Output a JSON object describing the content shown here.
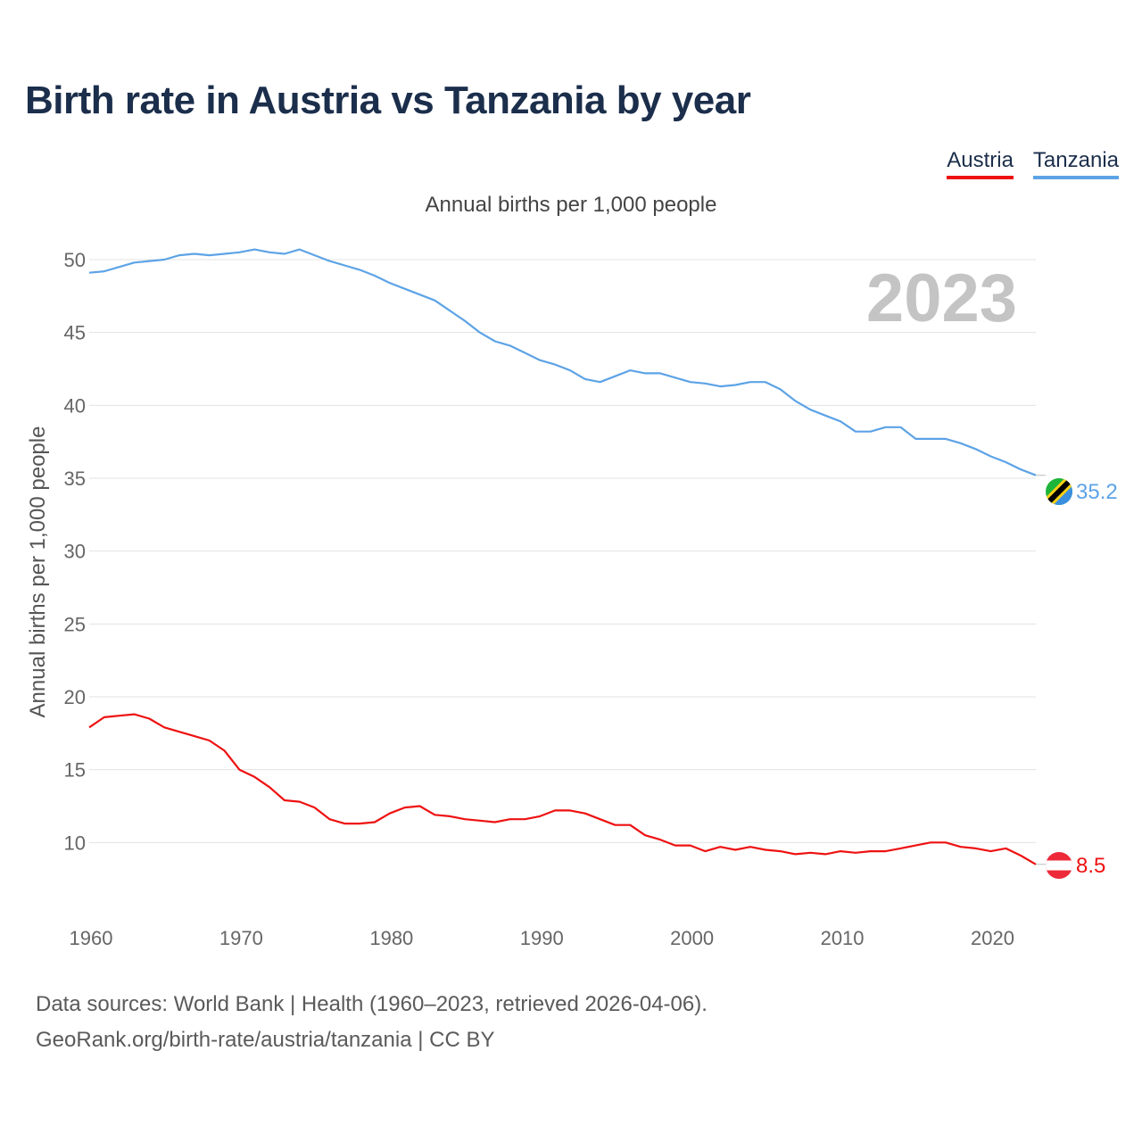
{
  "title": "Birth rate in Austria vs Tanzania by year",
  "subtitle": "Annual births per 1,000 people",
  "footer": {
    "line1": "Data sources: World Bank | Health (1960–2023, retrieved 2026-04-06).",
    "line2": "GeoRank.org/birth-rate/austria/tanzania | CC BY"
  },
  "colors": {
    "austria": "#ee1111",
    "tanzania": "#5da3e6"
  },
  "chart_data": {
    "type": "line",
    "title": "Birth rate in Austria vs Tanzania by year",
    "ylabel": "Annual births per 1,000 people",
    "xlabel": "",
    "year_label": "2023",
    "xlim": [
      1960,
      2023
    ],
    "ylim": [
      5,
      53
    ],
    "y_ticks": [
      10,
      15,
      20,
      25,
      30,
      35,
      40,
      45,
      50
    ],
    "x_ticks": [
      1960,
      1970,
      1980,
      1990,
      2000,
      2010,
      2020
    ],
    "grid": true,
    "x": [
      1960,
      1961,
      1962,
      1963,
      1964,
      1965,
      1966,
      1967,
      1968,
      1969,
      1970,
      1971,
      1972,
      1973,
      1974,
      1975,
      1976,
      1977,
      1978,
      1979,
      1980,
      1981,
      1982,
      1983,
      1984,
      1985,
      1986,
      1987,
      1988,
      1989,
      1990,
      1991,
      1992,
      1993,
      1994,
      1995,
      1996,
      1997,
      1998,
      1999,
      2000,
      2001,
      2002,
      2003,
      2004,
      2005,
      2006,
      2007,
      2008,
      2009,
      2010,
      2011,
      2012,
      2013,
      2014,
      2015,
      2016,
      2017,
      2018,
      2019,
      2020,
      2021,
      2022,
      2023
    ],
    "series": [
      {
        "name": "Austria",
        "end_label": "8.5",
        "values": [
          17.9,
          18.6,
          18.7,
          18.8,
          18.5,
          17.9,
          17.6,
          17.3,
          17.0,
          16.3,
          15.0,
          14.5,
          13.8,
          12.9,
          12.8,
          12.4,
          11.6,
          11.3,
          11.3,
          11.4,
          12.0,
          12.4,
          12.5,
          11.9,
          11.8,
          11.6,
          11.5,
          11.4,
          11.6,
          11.6,
          11.8,
          12.2,
          12.2,
          12.0,
          11.6,
          11.2,
          11.2,
          10.5,
          10.2,
          9.8,
          9.8,
          9.4,
          9.7,
          9.5,
          9.7,
          9.5,
          9.4,
          9.2,
          9.3,
          9.2,
          9.4,
          9.3,
          9.4,
          9.4,
          9.6,
          9.8,
          10.0,
          10.0,
          9.7,
          9.6,
          9.4,
          9.6,
          9.1,
          8.5
        ]
      },
      {
        "name": "Tanzania",
        "end_label": "35.2",
        "values": [
          49.1,
          49.2,
          49.5,
          49.8,
          49.9,
          50.0,
          50.3,
          50.4,
          50.3,
          50.4,
          50.5,
          50.7,
          50.5,
          50.4,
          50.7,
          50.3,
          49.9,
          49.6,
          49.3,
          48.9,
          48.4,
          48.0,
          47.6,
          47.2,
          46.5,
          45.8,
          45.0,
          44.4,
          44.1,
          43.6,
          43.1,
          42.8,
          42.4,
          41.8,
          41.6,
          42.0,
          42.4,
          42.2,
          42.2,
          41.9,
          41.6,
          41.5,
          41.3,
          41.4,
          41.6,
          41.6,
          41.1,
          40.3,
          39.7,
          39.3,
          38.9,
          38.2,
          38.2,
          38.5,
          38.5,
          37.7,
          37.7,
          37.7,
          37.4,
          37.0,
          36.5,
          36.1,
          35.6,
          35.2
        ]
      }
    ]
  }
}
